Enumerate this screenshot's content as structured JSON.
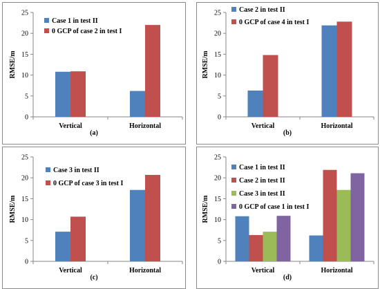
{
  "chart_data": [
    {
      "id": "a",
      "type": "bar",
      "caption": "(a)",
      "ylabel": "RMSE/m",
      "ylim": [
        0,
        25
      ],
      "yticks": [
        0,
        5,
        10,
        15,
        20,
        25
      ],
      "categories": [
        "Vertical",
        "Horizontal"
      ],
      "legend_position": "top-left",
      "series": [
        {
          "name": "Case 1 in test II",
          "color": "#4f81bd",
          "values": [
            10.8,
            6.2
          ]
        },
        {
          "name": "0 GCP of case 2 in test I",
          "color": "#c0504d",
          "values": [
            10.9,
            22.0
          ]
        }
      ]
    },
    {
      "id": "b",
      "type": "bar",
      "caption": "(b)",
      "ylabel": "RMSE/m",
      "ylim": [
        0,
        25
      ],
      "yticks": [
        0,
        5,
        10,
        15,
        20,
        25
      ],
      "categories": [
        "Vertical",
        "Horizontal"
      ],
      "legend_position": "top-left",
      "series": [
        {
          "name": "Case 2 in test II",
          "color": "#4f81bd",
          "values": [
            6.3,
            21.9
          ]
        },
        {
          "name": "0 GCP of case 4 in test I",
          "color": "#c0504d",
          "values": [
            14.8,
            22.8
          ]
        }
      ]
    },
    {
      "id": "c",
      "type": "bar",
      "caption": "(c)",
      "ylabel": "RMSE/m",
      "ylim": [
        0,
        25
      ],
      "yticks": [
        0,
        5,
        10,
        15,
        20,
        25
      ],
      "categories": [
        "Vertical",
        "Horizontal"
      ],
      "legend_position": "top-left",
      "series": [
        {
          "name": "Case 3 in test II",
          "color": "#4f81bd",
          "values": [
            7.1,
            17.1
          ]
        },
        {
          "name": "0 GCP of case 3 in test I",
          "color": "#c0504d",
          "values": [
            10.7,
            20.7
          ]
        }
      ]
    },
    {
      "id": "d",
      "type": "bar",
      "caption": "(d)",
      "ylabel": "RMSE/m",
      "ylim": [
        0,
        25
      ],
      "yticks": [
        0,
        5,
        10,
        15,
        20,
        25
      ],
      "categories": [
        "Vertical",
        "Horizontal"
      ],
      "legend_position": "top-left",
      "series": [
        {
          "name": "Case 1 in test II",
          "color": "#4f81bd",
          "values": [
            10.8,
            6.2
          ]
        },
        {
          "name": "Case 2 in test II",
          "color": "#c0504d",
          "values": [
            6.3,
            21.9
          ]
        },
        {
          "name": "Case 3 in test II",
          "color": "#9bbb59",
          "values": [
            7.1,
            17.1
          ]
        },
        {
          "name": "0 GCP of case 1 in test I",
          "color": "#8064a2",
          "values": [
            10.9,
            21.1
          ]
        }
      ]
    }
  ]
}
